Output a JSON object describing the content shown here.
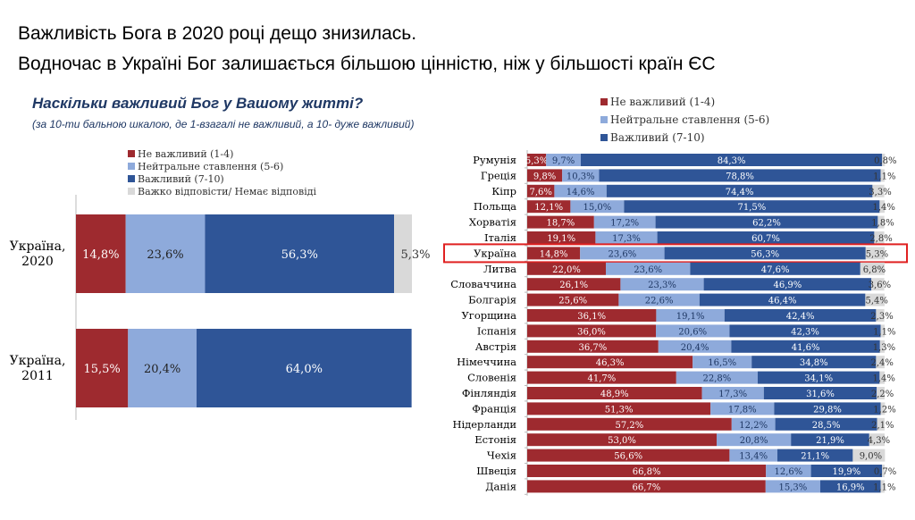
{
  "title_line1": "Важливість Бога в 2020 році дещо знизилась.",
  "title_line2": "Водночас в Україні Бог залишається більшою цінністю, ніж  у більшості країн ЄС",
  "question": "Наскільки важливий Бог у Вашому житті?",
  "question_note": "(за 10-ти бальною шкалою, де 1-взагалі не важливий, а 10- дуже важливий)",
  "colors": {
    "not_important": "#9e2a2f",
    "neutral": "#8eaadb",
    "important": "#2f5597",
    "no_answer": "#d9d9d9"
  },
  "chart_data": [
    {
      "type": "bar",
      "stacked": true,
      "orientation": "horizontal",
      "legend": [
        "Не важливий (1-4)",
        "Нейтральне ставлення (5-6)",
        "Важливий (7-10)",
        "Важко відповісти/ Немає відповіді"
      ],
      "categories": [
        "Україна, 2020",
        "Україна, 2011"
      ],
      "category_lines": [
        [
          "Україна,",
          "2020"
        ],
        [
          "Україна,",
          "2011"
        ]
      ],
      "series": [
        {
          "name": "Не важливий (1-4)",
          "values": [
            14.8,
            15.5
          ],
          "labels": [
            "14,8%",
            "15,5%"
          ]
        },
        {
          "name": "Нейтральне ставлення (5-6)",
          "values": [
            23.6,
            20.4
          ],
          "labels": [
            "23,6%",
            "20,4%"
          ]
        },
        {
          "name": "Важливий (7-10)",
          "values": [
            56.3,
            64.0
          ],
          "labels": [
            "56,3%",
            "64,0%"
          ]
        },
        {
          "name": "Важко відповісти/ Немає відповіді",
          "values": [
            5.3,
            0
          ],
          "labels": [
            "5,3%",
            ""
          ]
        }
      ]
    },
    {
      "type": "bar",
      "stacked": true,
      "orientation": "horizontal",
      "legend": [
        "Не важливий (1-4)",
        "Нейтральне ставлення (5-6)",
        "Важливий (7-10)"
      ],
      "highlighted": "Україна",
      "categories": [
        "Румунія",
        "Греція",
        "Кіпр",
        "Польща",
        "Хорватія",
        "Італія",
        "Україна",
        "Литва",
        "Словаччина",
        "Болгарія",
        "Угорщина",
        "Іспанія",
        "Австрія",
        "Німеччина",
        "Словенія",
        "Фінляндія",
        "Франція",
        "Нідерланди",
        "Естонія",
        "Чехія",
        "Швеція",
        "Данія"
      ],
      "series": [
        {
          "name": "Не важливий (1-4)",
          "values": [
            5.3,
            9.8,
            7.6,
            12.1,
            18.7,
            19.1,
            14.8,
            22.0,
            26.1,
            25.6,
            36.1,
            36.0,
            36.7,
            46.3,
            41.7,
            48.9,
            51.3,
            57.2,
            53.0,
            56.6,
            66.8,
            66.7
          ]
        },
        {
          "name": "Нейтральне ставлення (5-6)",
          "values": [
            9.7,
            10.3,
            14.6,
            15.0,
            17.2,
            17.3,
            23.6,
            23.6,
            23.3,
            22.6,
            19.1,
            20.6,
            20.4,
            16.5,
            22.8,
            17.3,
            17.8,
            12.2,
            20.8,
            13.4,
            12.6,
            15.3
          ]
        },
        {
          "name": "Важливий (7-10)",
          "values": [
            84.3,
            78.8,
            74.4,
            71.5,
            62.2,
            60.7,
            56.3,
            47.6,
            46.9,
            46.4,
            42.4,
            42.3,
            41.6,
            34.8,
            34.1,
            31.6,
            29.8,
            28.5,
            21.9,
            21.1,
            19.9,
            16.9
          ]
        },
        {
          "name": "Важко відповісти/ Немає відповіді",
          "values": [
            0.8,
            1.1,
            3.3,
            1.4,
            1.8,
            2.8,
            5.3,
            6.8,
            3.6,
            5.4,
            2.3,
            1.1,
            1.3,
            2.4,
            1.4,
            2.2,
            1.2,
            2.1,
            4.3,
            9.0,
            0.7,
            1.1
          ]
        }
      ]
    }
  ]
}
